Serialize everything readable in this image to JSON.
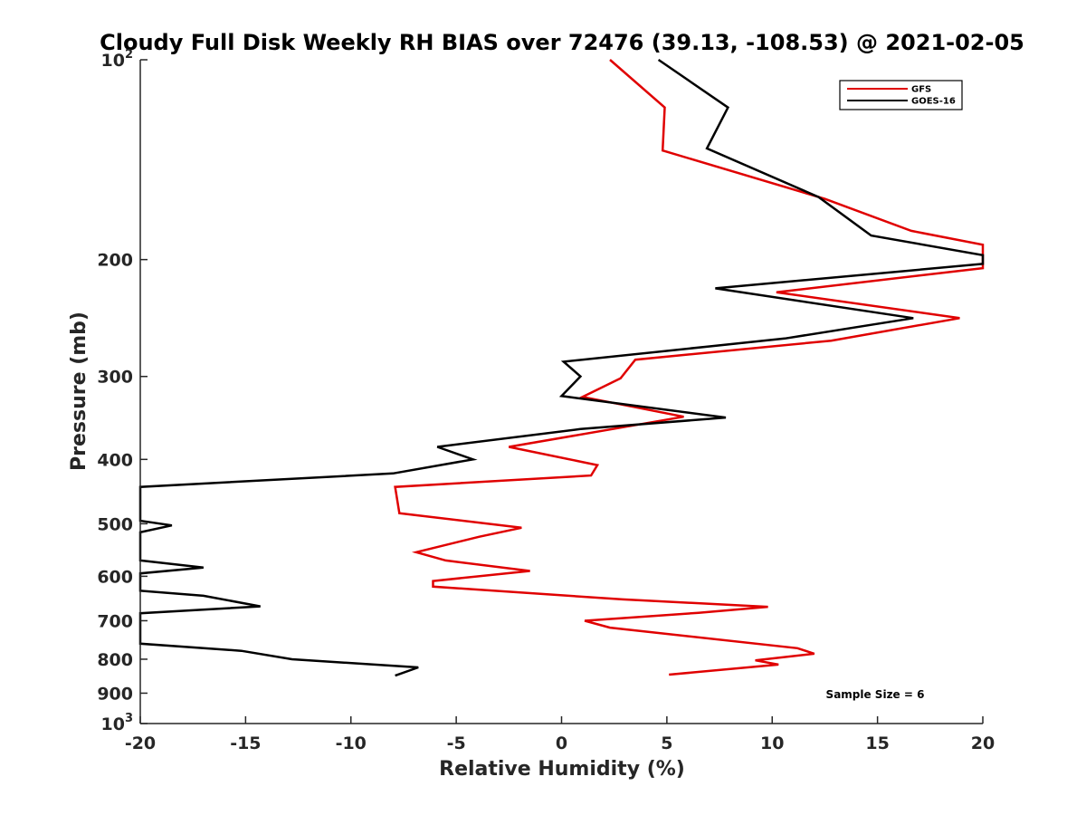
{
  "chart_data": {
    "type": "line",
    "title": "Cloudy Full Disk Weekly RH BIAS over 72476 (39.13, -108.53) @ 2021-02-05",
    "xlabel": "Relative Humidity (%)",
    "ylabel": "Pressure (mb)",
    "xlim": [
      -20,
      20
    ],
    "ylim": [
      100,
      1000
    ],
    "y_scale": "log",
    "y_reversed": true,
    "grid": false,
    "legend_position": "top-right",
    "x_ticks": [
      -20,
      -15,
      -10,
      -5,
      0,
      5,
      10,
      15,
      20
    ],
    "x_tick_labels": [
      "-20",
      "-15",
      "-10",
      "-5",
      "0",
      "5",
      "10",
      "15",
      "20"
    ],
    "y_ticks": [
      {
        "value": 100,
        "base": "10",
        "exp": "2"
      },
      {
        "value": 200,
        "base": "200",
        "exp": ""
      },
      {
        "value": 300,
        "base": "300",
        "exp": ""
      },
      {
        "value": 400,
        "base": "400",
        "exp": ""
      },
      {
        "value": 500,
        "base": "500",
        "exp": ""
      },
      {
        "value": 600,
        "base": "600",
        "exp": ""
      },
      {
        "value": 700,
        "base": "700",
        "exp": ""
      },
      {
        "value": 800,
        "base": "800",
        "exp": ""
      },
      {
        "value": 900,
        "base": "900",
        "exp": ""
      },
      {
        "value": 1000,
        "base": "10",
        "exp": "3"
      }
    ],
    "annotation": "Sample Size = 6",
    "series": [
      {
        "name": "GFS",
        "color": "#e00000",
        "points": [
          [
            2.3,
            100
          ],
          [
            4.9,
            118
          ],
          [
            4.8,
            137
          ],
          [
            12.5,
            162
          ],
          [
            16.6,
            181
          ],
          [
            20,
            190
          ],
          [
            20,
            206
          ],
          [
            10.2,
            224
          ],
          [
            18.9,
            245
          ],
          [
            12.8,
            265
          ],
          [
            3.5,
            283
          ],
          [
            2.8,
            302
          ],
          [
            1.0,
            322
          ],
          [
            5.8,
            345
          ],
          [
            -2.5,
            383
          ],
          [
            1.7,
            408
          ],
          [
            1.4,
            423
          ],
          [
            -7.9,
            440
          ],
          [
            -7.7,
            482
          ],
          [
            -1.9,
            507
          ],
          [
            -3.9,
            523
          ],
          [
            -6.9,
            552
          ],
          [
            -5.5,
            568
          ],
          [
            -1.5,
            589
          ],
          [
            -6.1,
            610
          ],
          [
            -6.1,
            622
          ],
          [
            2.9,
            650
          ],
          [
            9.8,
            667
          ],
          [
            6.5,
            681
          ],
          [
            1.1,
            700
          ],
          [
            2.3,
            717
          ],
          [
            11.2,
            770
          ],
          [
            12,
            785
          ],
          [
            9.2,
            803
          ],
          [
            10.3,
            815
          ],
          [
            5.1,
            844
          ]
        ]
      },
      {
        "name": "GOES-16",
        "color": "#000000",
        "points": [
          [
            4.6,
            100
          ],
          [
            7.9,
            118
          ],
          [
            6.9,
            136
          ],
          [
            12.2,
            161
          ],
          [
            14.7,
            184
          ],
          [
            20,
            197
          ],
          [
            20,
            203
          ],
          [
            7.3,
            221
          ],
          [
            16.7,
            245
          ],
          [
            10.6,
            263
          ],
          [
            0.1,
            285
          ],
          [
            0.9,
            300
          ],
          [
            0,
            321
          ],
          [
            7.8,
            346
          ],
          [
            0.9,
            360
          ],
          [
            -5.9,
            383
          ],
          [
            -4.2,
            400
          ],
          [
            -8.0,
            420
          ],
          [
            -20,
            440
          ],
          [
            -20,
            495
          ],
          [
            -18.5,
            503
          ],
          [
            -20,
            515
          ],
          [
            -20,
            568
          ],
          [
            -17,
            582
          ],
          [
            -20,
            594
          ],
          [
            -20,
            631
          ],
          [
            -17,
            642
          ],
          [
            -14.3,
            666
          ],
          [
            -20,
            682
          ],
          [
            -20,
            758
          ],
          [
            -15.2,
            777
          ],
          [
            -12.8,
            800
          ],
          [
            -6.8,
            823
          ],
          [
            -7.9,
            847
          ]
        ]
      }
    ]
  }
}
